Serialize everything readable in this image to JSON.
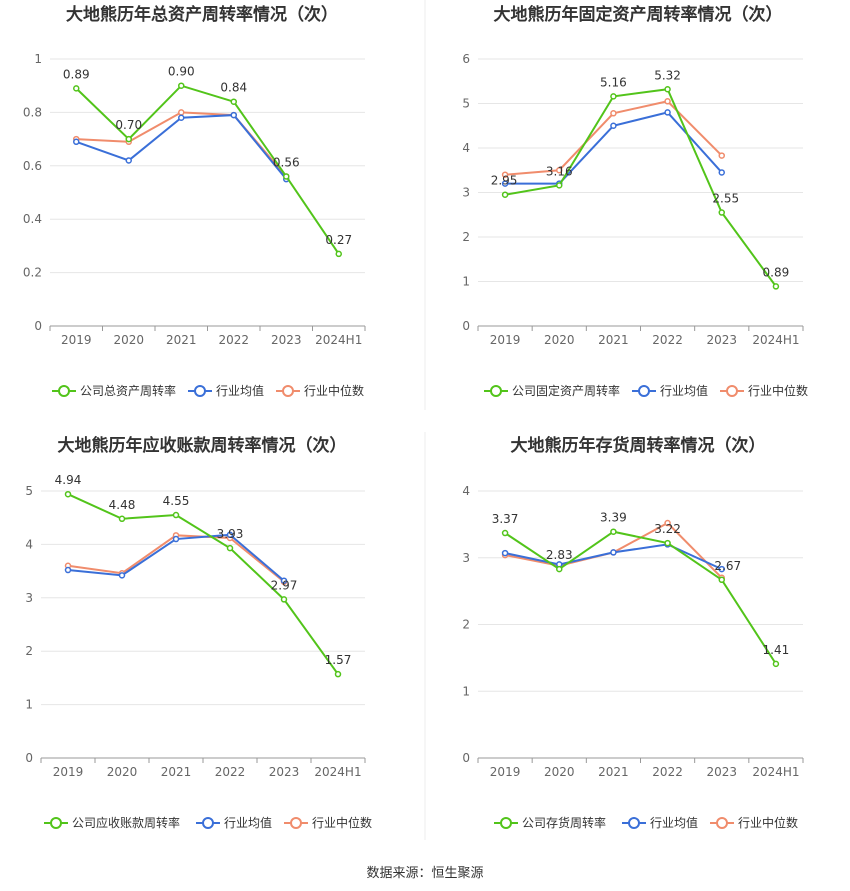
{
  "colors": {
    "company": "#52c41a",
    "avg": "#3a6fd8",
    "median": "#f08c6c",
    "grid": "#e6e6e6",
    "axis": "#999999"
  },
  "chart_data": [
    {
      "type": "line",
      "title": "大地熊历年总资产周转率情况（次）",
      "categories": [
        "2019",
        "2020",
        "2021",
        "2022",
        "2023",
        "2024H1"
      ],
      "ylim": [
        0,
        1
      ],
      "yticks": [
        "0",
        "0.2",
        "0.4",
        "0.6",
        "0.8",
        "1"
      ],
      "series": [
        {
          "name": "公司总资产周转率",
          "values": [
            0.89,
            0.7,
            0.9,
            0.84,
            0.56,
            0.27
          ],
          "labels": [
            "0.89",
            "0.70",
            "0.90",
            "0.84",
            "0.56",
            "0.27"
          ]
        },
        {
          "name": "行业均值",
          "values": [
            0.69,
            0.62,
            0.78,
            0.79,
            0.55,
            null
          ]
        },
        {
          "name": "行业中位数",
          "values": [
            0.7,
            0.69,
            0.8,
            0.79,
            0.56,
            null
          ]
        }
      ]
    },
    {
      "type": "line",
      "title": "大地熊历年固定资产周转率情况（次）",
      "categories": [
        "2019",
        "2020",
        "2021",
        "2022",
        "2023",
        "2024H1"
      ],
      "ylim": [
        0,
        6
      ],
      "yticks": [
        "0",
        "1",
        "2",
        "3",
        "4",
        "5",
        "6"
      ],
      "series": [
        {
          "name": "公司固定资产周转率",
          "values": [
            2.95,
            3.16,
            5.16,
            5.32,
            2.55,
            0.89
          ],
          "labels": [
            "2.95",
            "3.16",
            "5.16",
            "5.32",
            "2.55",
            "0.89"
          ]
        },
        {
          "name": "行业均值",
          "values": [
            3.2,
            3.2,
            4.5,
            4.8,
            3.45,
            null
          ]
        },
        {
          "name": "行业中位数",
          "values": [
            3.4,
            3.5,
            4.78,
            5.05,
            3.83,
            null
          ]
        }
      ]
    },
    {
      "type": "line",
      "title": "大地熊历年应收账款周转率情况（次）",
      "categories": [
        "2019",
        "2020",
        "2021",
        "2022",
        "2023",
        "2024H1"
      ],
      "ylim": [
        0,
        5
      ],
      "yticks": [
        "0",
        "1",
        "2",
        "3",
        "4",
        "5"
      ],
      "series": [
        {
          "name": "公司应收账款周转率",
          "values": [
            4.94,
            4.48,
            4.55,
            3.93,
            2.97,
            1.57
          ],
          "labels": [
            "4.94",
            "4.48",
            "4.55",
            "3.93",
            "2.97",
            "1.57"
          ]
        },
        {
          "name": "行业均值",
          "values": [
            3.52,
            3.42,
            4.1,
            4.18,
            3.32,
            null
          ]
        },
        {
          "name": "行业中位数",
          "values": [
            3.6,
            3.46,
            4.17,
            4.12,
            3.3,
            null
          ]
        }
      ]
    },
    {
      "type": "line",
      "title": "大地熊历年存货周转率情况（次）",
      "categories": [
        "2019",
        "2020",
        "2021",
        "2022",
        "2023",
        "2024H1"
      ],
      "ylim": [
        0,
        4
      ],
      "yticks": [
        "0",
        "1",
        "2",
        "3",
        "4"
      ],
      "series": [
        {
          "name": "公司存货周转率",
          "values": [
            3.37,
            2.83,
            3.39,
            3.22,
            2.67,
            1.41
          ],
          "labels": [
            "3.37",
            "2.83",
            "3.39",
            "3.22",
            "2.67",
            "1.41"
          ]
        },
        {
          "name": "行业均值",
          "values": [
            3.07,
            2.9,
            3.08,
            3.2,
            2.83,
            null
          ]
        },
        {
          "name": "行业中位数",
          "values": [
            3.04,
            2.88,
            3.08,
            3.52,
            2.7,
            null
          ]
        }
      ]
    }
  ],
  "footer": {
    "source": "数据来源：恒生聚源"
  }
}
